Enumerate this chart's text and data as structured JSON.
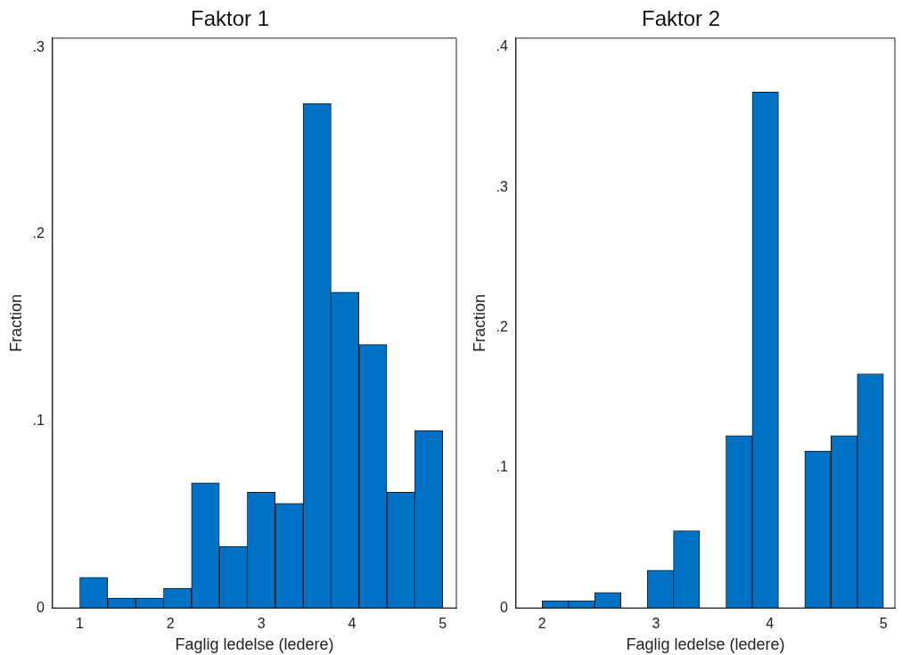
{
  "chart_data": [
    {
      "type": "histogram",
      "title": "Faktor 1",
      "xlabel": "Faglig ledelse (ledere)",
      "ylabel": "Fraction",
      "color": "#0072c6",
      "bins": [
        1,
        1.3077,
        1.6154,
        1.9231,
        2.2308,
        2.5385,
        2.8462,
        3.1538,
        3.4615,
        3.7692,
        4.0769,
        4.3846,
        4.6923,
        5
      ],
      "values": [
        0.0164,
        0.0053,
        0.0053,
        0.0106,
        0.067,
        0.033,
        0.062,
        0.056,
        0.27,
        0.169,
        0.141,
        0.062,
        0.095
      ],
      "xlim": [
        0.7,
        5.15
      ],
      "xticks": [
        1,
        2,
        3,
        4,
        5
      ],
      "ylim": [
        0,
        0.305
      ],
      "yticks": [
        {
          "value": 0,
          "label": "0"
        },
        {
          "value": 0.1,
          "label": ".1"
        },
        {
          "value": 0.2,
          "label": ".2"
        },
        {
          "value": 0.3,
          "label": ".3"
        }
      ],
      "grid": false,
      "legend": false
    },
    {
      "type": "histogram",
      "title": "Faktor 2",
      "xlabel": "Faglig ledelse (ledere)",
      "ylabel": "Fraction",
      "color": "#0072c6",
      "bins": [
        2,
        2.2308,
        2.4615,
        2.6923,
        2.9231,
        3.1538,
        3.3846,
        3.6154,
        3.8462,
        4.0769,
        4.3077,
        4.5385,
        4.7692,
        5
      ],
      "values": [
        0.0052,
        0.0052,
        0.011,
        0,
        0.027,
        0.055,
        0,
        0.123,
        0.368,
        0,
        0.112,
        0.123,
        0.167
      ],
      "xlim": [
        1.77,
        5.1
      ],
      "xticks": [
        2,
        3,
        4,
        5
      ],
      "ylim": [
        0,
        0.4065
      ],
      "yticks": [
        {
          "value": 0,
          "label": "0"
        },
        {
          "value": 0.1,
          "label": ".1"
        },
        {
          "value": 0.2,
          "label": ".2"
        },
        {
          "value": 0.3,
          "label": ".3"
        },
        {
          "value": 0.4,
          "label": ".4"
        }
      ],
      "grid": false,
      "legend": false
    }
  ]
}
